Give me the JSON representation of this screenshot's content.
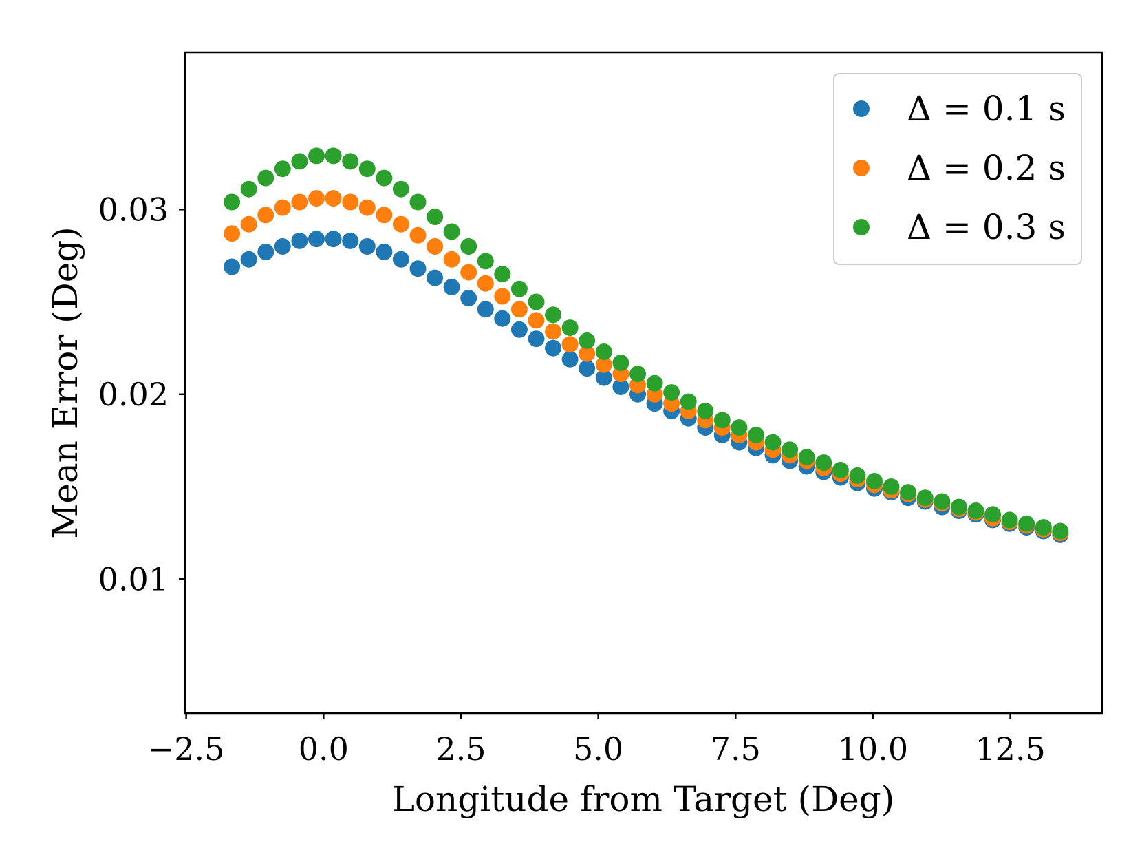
{
  "chart_data": {
    "type": "scatter",
    "title": "",
    "xlabel": "Longitude from Target (Deg)",
    "ylabel": "Mean Error (Deg)",
    "xlim": [
      -2.52,
      14.17
    ],
    "ylim": [
      0.00275,
      0.0385
    ],
    "xticks": [
      -2.5,
      0.0,
      2.5,
      5.0,
      7.5,
      10.0,
      12.5
    ],
    "xtick_labels": [
      "−2.5",
      "0.0",
      "2.5",
      "5.0",
      "7.5",
      "10.0",
      "12.5"
    ],
    "yticks": [
      0.01,
      0.02,
      0.03
    ],
    "ytick_labels": [
      "0.01",
      "0.02",
      "0.03"
    ],
    "grid": false,
    "legend_position": "top-right",
    "x": [
      -1.667,
      -1.359,
      -1.051,
      -0.744,
      -0.436,
      -0.128,
      0.179,
      0.487,
      0.795,
      1.103,
      1.41,
      1.718,
      2.026,
      2.333,
      2.641,
      2.949,
      3.256,
      3.564,
      3.872,
      4.179,
      4.487,
      4.795,
      5.103,
      5.41,
      5.718,
      6.026,
      6.333,
      6.641,
      6.949,
      7.256,
      7.564,
      7.872,
      8.179,
      8.487,
      8.795,
      9.103,
      9.41,
      9.718,
      10.026,
      10.333,
      10.641,
      10.949,
      11.256,
      11.564,
      11.872,
      12.179,
      12.487,
      12.795,
      13.103,
      13.41
    ],
    "series": [
      {
        "name": "Δ = 0.1 s",
        "color": "#1f77b4",
        "values": [
          0.0269,
          0.0273,
          0.0277,
          0.028,
          0.0283,
          0.0284,
          0.0284,
          0.0283,
          0.028,
          0.0277,
          0.0273,
          0.0268,
          0.0263,
          0.0258,
          0.0252,
          0.0246,
          0.0241,
          0.0235,
          0.023,
          0.0225,
          0.0219,
          0.0214,
          0.0209,
          0.0204,
          0.02,
          0.0195,
          0.0191,
          0.0187,
          0.0182,
          0.0178,
          0.0174,
          0.0171,
          0.0167,
          0.0164,
          0.0161,
          0.0158,
          0.0155,
          0.0152,
          0.0149,
          0.0147,
          0.0144,
          0.0142,
          0.0139,
          0.0137,
          0.0135,
          0.0132,
          0.013,
          0.0128,
          0.0126,
          0.0124
        ]
      },
      {
        "name": "Δ = 0.2 s",
        "color": "#ff7f0e",
        "values": [
          0.0287,
          0.0292,
          0.0297,
          0.0301,
          0.0304,
          0.0306,
          0.0306,
          0.0304,
          0.0301,
          0.0297,
          0.0292,
          0.0286,
          0.028,
          0.0273,
          0.0266,
          0.026,
          0.0253,
          0.0246,
          0.024,
          0.0234,
          0.0227,
          0.0222,
          0.0216,
          0.0211,
          0.0205,
          0.02,
          0.0195,
          0.0191,
          0.0186,
          0.0182,
          0.0178,
          0.0174,
          0.017,
          0.0167,
          0.0164,
          0.016,
          0.0157,
          0.0154,
          0.0151,
          0.0148,
          0.0146,
          0.0143,
          0.0141,
          0.0138,
          0.0136,
          0.0133,
          0.0131,
          0.0129,
          0.0127,
          0.0125
        ]
      },
      {
        "name": "Δ = 0.3 s",
        "color": "#2ca02c",
        "values": [
          0.0304,
          0.0311,
          0.0317,
          0.0322,
          0.0326,
          0.0329,
          0.0329,
          0.0326,
          0.0322,
          0.0317,
          0.0311,
          0.0304,
          0.0296,
          0.0288,
          0.028,
          0.0272,
          0.0265,
          0.0257,
          0.025,
          0.0243,
          0.0236,
          0.0229,
          0.0223,
          0.0217,
          0.0211,
          0.0206,
          0.0201,
          0.0196,
          0.0191,
          0.0186,
          0.0182,
          0.0178,
          0.0174,
          0.017,
          0.0166,
          0.0163,
          0.0159,
          0.0156,
          0.0153,
          0.015,
          0.0147,
          0.0144,
          0.0142,
          0.0139,
          0.0137,
          0.0135,
          0.0132,
          0.013,
          0.0128,
          0.0126
        ]
      }
    ]
  }
}
